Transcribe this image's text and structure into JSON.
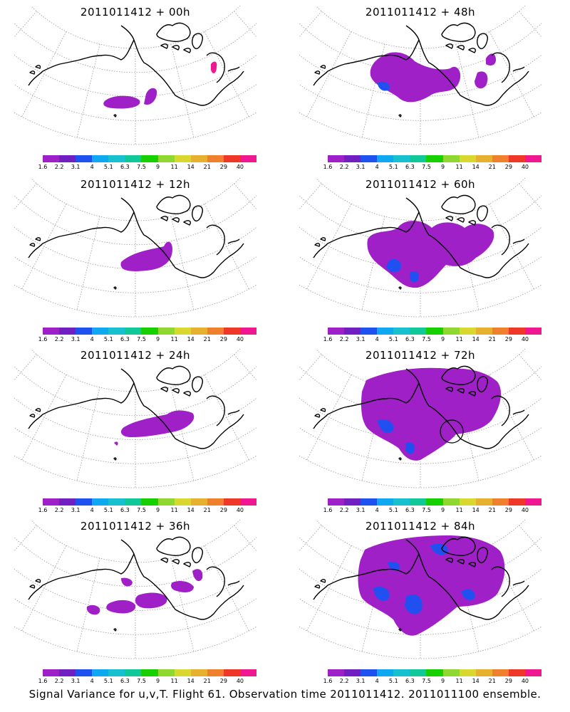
{
  "footer": "Signal Variance for u,v,T. Flight 61. Observation time 2011011412. 2011011100 ensemble.",
  "colorbar": {
    "labels": [
      "1.6",
      "2.2",
      "3.1",
      "4",
      "5.1",
      "6.3",
      "7.5",
      "9",
      "11",
      "14",
      "21",
      "29",
      "40"
    ],
    "colors": [
      "#a020c8",
      "#7020c0",
      "#2050f0",
      "#10a8f0",
      "#18c0d0",
      "#10c898",
      "#18d000",
      "#90d830",
      "#d8d830",
      "#e8b030",
      "#f08030",
      "#f03828",
      "#f01890"
    ]
  },
  "panels": [
    {
      "title": "2011011412 + 00h",
      "lead_hours": 0
    },
    {
      "title": "2011011412 + 48h",
      "lead_hours": 48
    },
    {
      "title": "2011011412 + 12h",
      "lead_hours": 12
    },
    {
      "title": "2011011412 + 60h",
      "lead_hours": 60
    },
    {
      "title": "2011011412 + 24h",
      "lead_hours": 24
    },
    {
      "title": "2011011412 + 72h",
      "lead_hours": 72
    },
    {
      "title": "2011011412 + 36h",
      "lead_hours": 36
    },
    {
      "title": "2011011412 + 84h",
      "lead_hours": 84
    }
  ]
}
